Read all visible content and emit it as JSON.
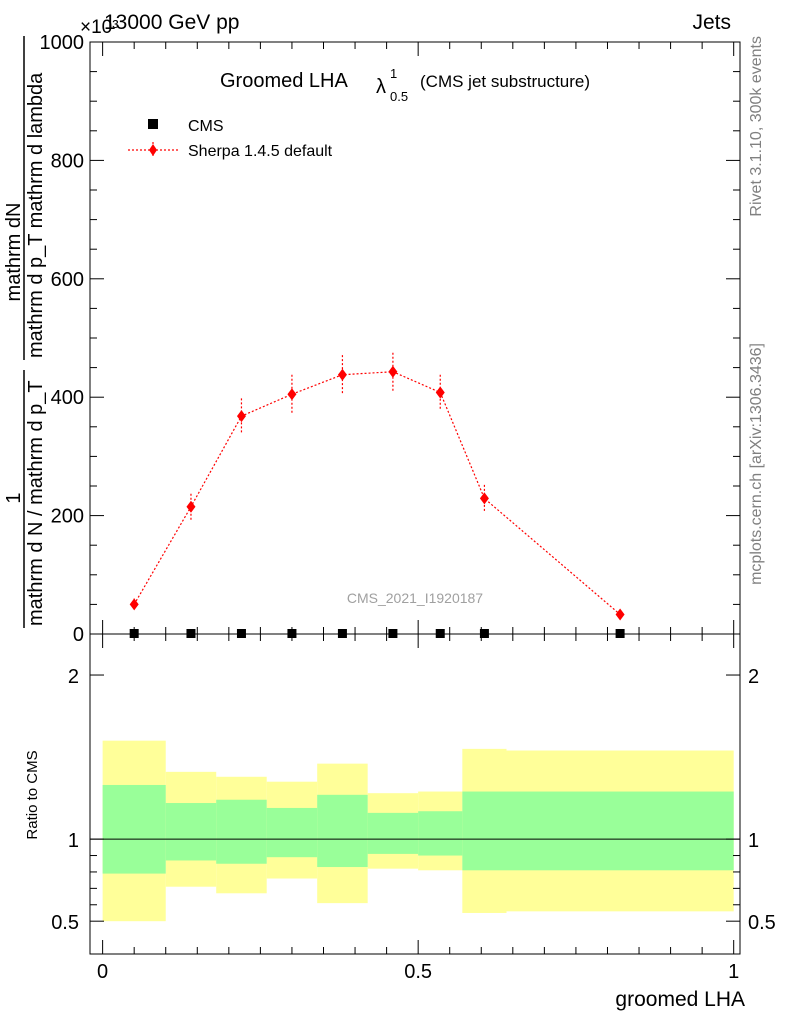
{
  "header": {
    "energy_label": "13000 GeV pp",
    "process_label": "Jets",
    "exponent_label": "×10³"
  },
  "side": {
    "rivet": "Rivet 3.1.10,  300k events",
    "mcplots": "mcplots.cern.ch [arXiv:1306.3436]"
  },
  "plot": {
    "title_main": "Groomed LHA",
    "title_lambda": "λ",
    "title_sup": "1",
    "title_sub": "0.5",
    "title_tail": "(CMS jet substructure)",
    "watermark": "CMS_2021_I1920187",
    "ylabel_num": "mathrm dN",
    "ylabel_den": "mathrm d p_T mathrm d lambda",
    "ylabel_prefix_num": "1",
    "ylabel_prefix_den": "mathrm d N / mathrm d p_T",
    "ratio_ylabel": "Ratio to CMS",
    "xlabel": "groomed LHA"
  },
  "legend": [
    {
      "label": "CMS",
      "marker": "square",
      "color": "#000000"
    },
    {
      "label": "Sherpa 1.4.5 default",
      "marker": "diamond",
      "color": "#ff0000"
    }
  ],
  "chart_data": [
    {
      "type": "line",
      "title": "Groomed LHA λ^1_0.5 (CMS jet substructure)",
      "ylabel": "1 / (mathrm d N / mathrm d p_T) · mathrm dN / (mathrm d p_T mathrm d lambda)",
      "xlim": [
        -0.02,
        1.01
      ],
      "ylim": [
        0,
        1000
      ],
      "yticks": [
        0,
        200,
        400,
        600,
        800,
        1000
      ],
      "ytick_labels": [
        "0",
        "200",
        "400",
        "600",
        "800",
        "1000"
      ],
      "y_scale_note": "×10³",
      "series": [
        {
          "name": "CMS",
          "x": [
            0.05,
            0.14,
            0.22,
            0.3,
            0.38,
            0.46,
            0.535,
            0.605,
            0.82
          ],
          "y": [
            0,
            0,
            0,
            0,
            0,
            0,
            0,
            0,
            0
          ]
        },
        {
          "name": "Sherpa 1.4.5 default",
          "x": [
            0.05,
            0.14,
            0.22,
            0.3,
            0.38,
            0.46,
            0.535,
            0.605,
            0.82
          ],
          "y": [
            50,
            215,
            368,
            405,
            438,
            443,
            408,
            229,
            33
          ],
          "yerr": [
            10,
            22,
            30,
            33,
            33,
            32,
            30,
            23,
            6
          ]
        }
      ]
    },
    {
      "type": "area",
      "title": "",
      "ylabel": "Ratio to CMS",
      "xlabel": "groomed LHA",
      "xlim": [
        -0.02,
        1.01
      ],
      "ylim": [
        0.3,
        2.25
      ],
      "xticks": [
        0,
        0.5,
        1
      ],
      "xtick_labels": [
        "0",
        "0.5",
        "1"
      ],
      "yticks": [
        0.5,
        1,
        2
      ],
      "ytick_labels": [
        "0.5",
        "1",
        "2"
      ],
      "bins": [
        {
          "lo": 0.0,
          "hi": 0.1,
          "yellow": [
            0.5,
            1.6
          ],
          "green": [
            0.79,
            1.33
          ]
        },
        {
          "lo": 0.1,
          "hi": 0.18,
          "yellow": [
            0.71,
            1.41
          ],
          "green": [
            0.87,
            1.22
          ]
        },
        {
          "lo": 0.18,
          "hi": 0.26,
          "yellow": [
            0.67,
            1.38
          ],
          "green": [
            0.85,
            1.24
          ]
        },
        {
          "lo": 0.26,
          "hi": 0.34,
          "yellow": [
            0.76,
            1.35
          ],
          "green": [
            0.89,
            1.19
          ]
        },
        {
          "lo": 0.34,
          "hi": 0.42,
          "yellow": [
            0.61,
            1.46
          ],
          "green": [
            0.83,
            1.27
          ]
        },
        {
          "lo": 0.42,
          "hi": 0.5,
          "yellow": [
            0.82,
            1.28
          ],
          "green": [
            0.91,
            1.16
          ]
        },
        {
          "lo": 0.5,
          "hi": 0.57,
          "yellow": [
            0.81,
            1.29
          ],
          "green": [
            0.9,
            1.17
          ]
        },
        {
          "lo": 0.57,
          "hi": 0.64,
          "yellow": [
            0.55,
            1.55
          ],
          "green": [
            0.81,
            1.29
          ]
        },
        {
          "lo": 0.64,
          "hi": 1.0,
          "yellow": [
            0.56,
            1.54
          ],
          "green": [
            0.81,
            1.29
          ]
        }
      ],
      "reference_line": 1
    }
  ]
}
